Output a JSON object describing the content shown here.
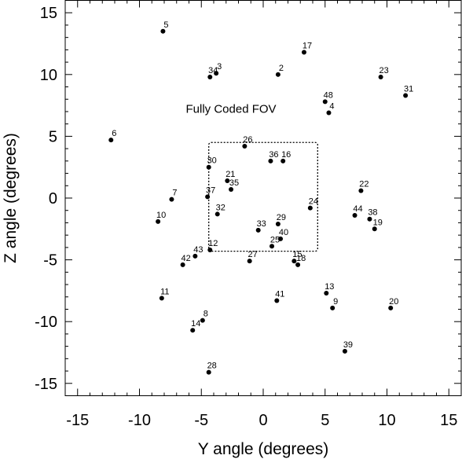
{
  "chart_data": {
    "type": "scatter",
    "title": "",
    "xlabel": "Y angle (degrees)",
    "ylabel": "Z angle (degrees)",
    "xlim": [
      -16,
      16
    ],
    "ylim": [
      -16,
      16
    ],
    "xticks": [
      -15,
      -10,
      -5,
      0,
      5,
      10,
      15
    ],
    "yticks": [
      -15,
      -10,
      -5,
      0,
      5,
      10,
      15
    ],
    "grid": false,
    "points": [
      {
        "id": "2",
        "x": 1.2,
        "y": 10.0
      },
      {
        "id": "3",
        "x": -3.8,
        "y": 10.1
      },
      {
        "id": "4",
        "x": 5.3,
        "y": 6.9
      },
      {
        "id": "5",
        "x": -8.1,
        "y": 13.5
      },
      {
        "id": "6",
        "x": -12.3,
        "y": 4.7
      },
      {
        "id": "7",
        "x": -7.4,
        "y": -0.1
      },
      {
        "id": "8",
        "x": -4.9,
        "y": -9.9
      },
      {
        "id": "9",
        "x": 5.6,
        "y": -8.9
      },
      {
        "id": "10",
        "x": -8.5,
        "y": -1.9
      },
      {
        "id": "11",
        "x": -8.2,
        "y": -8.1
      },
      {
        "id": "12",
        "x": -4.3,
        "y": -4.2
      },
      {
        "id": "13",
        "x": 5.1,
        "y": -7.7
      },
      {
        "id": "14",
        "x": -5.7,
        "y": -10.7
      },
      {
        "id": "15",
        "x": 2.5,
        "y": -5.1
      },
      {
        "id": "16",
        "x": 1.6,
        "y": 3.0
      },
      {
        "id": "17",
        "x": 3.3,
        "y": 11.8
      },
      {
        "id": "18",
        "x": 2.8,
        "y": -5.4
      },
      {
        "id": "19",
        "x": 9.0,
        "y": -2.5
      },
      {
        "id": "20",
        "x": 10.3,
        "y": -8.9
      },
      {
        "id": "21",
        "x": -2.9,
        "y": 1.4
      },
      {
        "id": "22",
        "x": 7.9,
        "y": 0.6
      },
      {
        "id": "23",
        "x": 9.5,
        "y": 9.8
      },
      {
        "id": "24",
        "x": 3.8,
        "y": -0.8
      },
      {
        "id": "25",
        "x": 0.7,
        "y": -3.9
      },
      {
        "id": "26",
        "x": -1.5,
        "y": 4.2
      },
      {
        "id": "27",
        "x": -1.1,
        "y": -5.1
      },
      {
        "id": "28",
        "x": -4.4,
        "y": -14.1
      },
      {
        "id": "29",
        "x": 1.2,
        "y": -2.1
      },
      {
        "id": "30",
        "x": -4.4,
        "y": 2.5
      },
      {
        "id": "31",
        "x": 11.5,
        "y": 8.3
      },
      {
        "id": "32",
        "x": -3.7,
        "y": -1.3
      },
      {
        "id": "33",
        "x": -0.4,
        "y": -2.6
      },
      {
        "id": "34",
        "x": -4.3,
        "y": 9.8
      },
      {
        "id": "35",
        "x": -2.6,
        "y": 0.7
      },
      {
        "id": "36",
        "x": 0.6,
        "y": 3.0
      },
      {
        "id": "37",
        "x": -4.5,
        "y": 0.1
      },
      {
        "id": "38",
        "x": 8.6,
        "y": -1.7
      },
      {
        "id": "39",
        "x": 6.6,
        "y": -12.4
      },
      {
        "id": "40",
        "x": 1.4,
        "y": -3.3
      },
      {
        "id": "41",
        "x": 1.1,
        "y": -8.3
      },
      {
        "id": "42",
        "x": -6.5,
        "y": -5.4
      },
      {
        "id": "43",
        "x": -5.5,
        "y": -4.7
      },
      {
        "id": "44",
        "x": 7.4,
        "y": -1.4
      },
      {
        "id": "48",
        "x": 5.0,
        "y": 7.8
      }
    ],
    "annotations": [
      {
        "text": "Fully Coded FOV",
        "x": -2.6,
        "y": 6.9
      }
    ],
    "regions": [
      {
        "name": "fully-coded-fov",
        "style": "dotted",
        "x0": -4.4,
        "x1": 4.4,
        "y0": -4.3,
        "y1": 4.5
      }
    ]
  }
}
